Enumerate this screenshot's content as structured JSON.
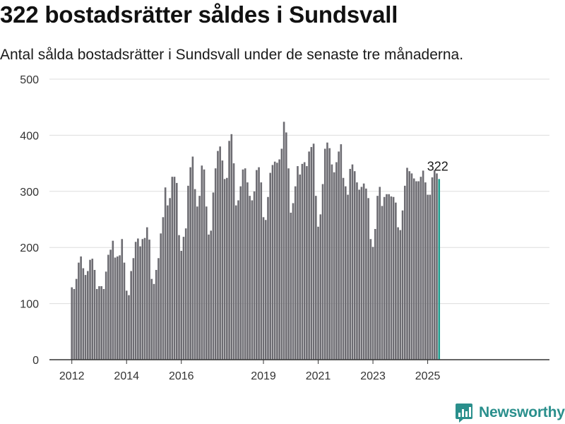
{
  "header": {
    "title": "322 bostadsrätter såldes i Sundsvall",
    "subtitle": "Antal sålda bostadsrätter i Sundsvall under de senaste tre månaderna."
  },
  "brand": {
    "name": "Newsworthy",
    "icon": "newsworthy-logo-icon",
    "color": "#2a8f8c"
  },
  "colors": {
    "bar": "#6d6c72",
    "highlight": "#1f9e8f",
    "grid": "#dddddd",
    "axis": "#333333"
  },
  "chart_data": {
    "type": "bar",
    "title": "322 bostadsrätter såldes i Sundsvall",
    "subtitle": "Antal sålda bostadsrätter i Sundsvall under de senaste tre månaderna.",
    "xlabel": "",
    "ylabel": "",
    "ylim": [
      0,
      500
    ],
    "yticks": [
      0,
      100,
      200,
      300,
      400,
      500
    ],
    "xticks": [
      {
        "label": "2012",
        "month": "2012-01"
      },
      {
        "label": "2014",
        "month": "2014-01"
      },
      {
        "label": "2016",
        "month": "2016-01"
      },
      {
        "label": "2019",
        "month": "2019-01"
      },
      {
        "label": "2021",
        "month": "2021-01"
      },
      {
        "label": "2023",
        "month": "2023-01"
      },
      {
        "label": "2025",
        "month": "2025-01"
      }
    ],
    "grid": true,
    "start_month": "2012-01",
    "highlight_label": "322",
    "values": [
      129,
      126,
      144,
      173,
      184,
      163,
      151,
      158,
      178,
      180,
      160,
      126,
      131,
      131,
      126,
      157,
      187,
      196,
      212,
      182,
      184,
      186,
      215,
      173,
      123,
      115,
      158,
      181,
      210,
      216,
      202,
      215,
      217,
      236,
      214,
      144,
      135,
      160,
      181,
      225,
      254,
      307,
      275,
      288,
      326,
      326,
      315,
      222,
      194,
      219,
      234,
      310,
      343,
      362,
      304,
      273,
      292,
      346,
      339,
      273,
      223,
      230,
      298,
      341,
      372,
      380,
      355,
      322,
      324,
      390,
      402,
      350,
      275,
      284,
      309,
      339,
      341,
      316,
      292,
      284,
      300,
      338,
      343,
      316,
      254,
      249,
      290,
      333,
      347,
      353,
      351,
      357,
      376,
      424,
      405,
      341,
      262,
      279,
      309,
      345,
      330,
      349,
      352,
      345,
      371,
      379,
      385,
      292,
      237,
      259,
      313,
      376,
      387,
      377,
      348,
      334,
      352,
      371,
      384,
      324,
      309,
      294,
      340,
      348,
      336,
      316,
      303,
      308,
      314,
      305,
      288,
      215,
      201,
      233,
      292,
      308,
      274,
      290,
      295,
      295,
      291,
      290,
      280,
      236,
      231,
      266,
      310,
      342,
      336,
      332,
      323,
      318,
      318,
      326,
      337,
      316,
      294,
      294,
      325,
      338,
      332,
      322
    ]
  }
}
